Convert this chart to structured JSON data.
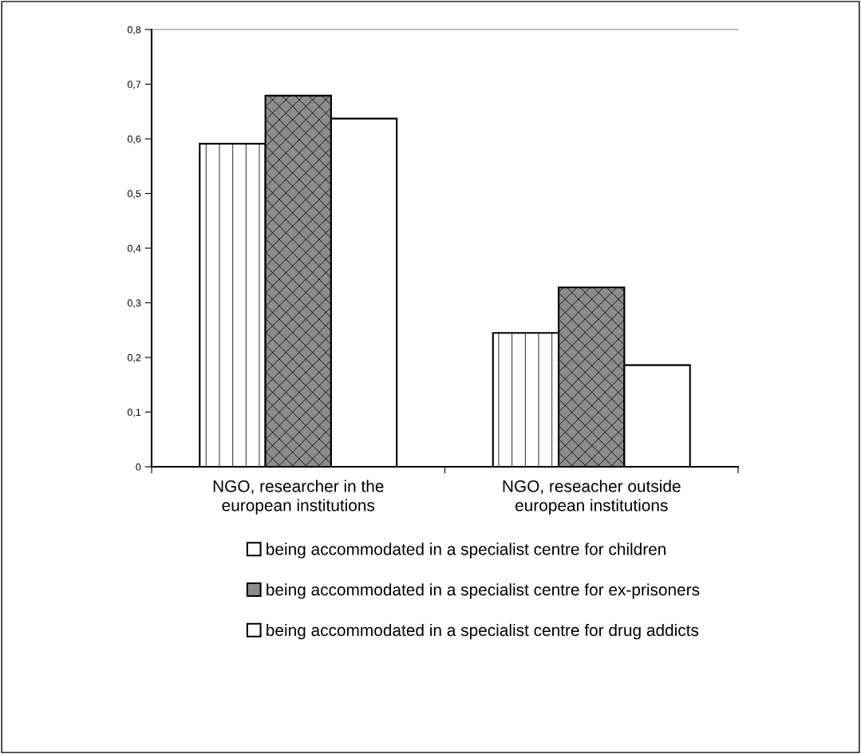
{
  "chart_data": {
    "type": "bar",
    "categories": [
      "NGO, researcher in the\neuropean institutions",
      "NGO, reseacher outside\neuropean institutions"
    ],
    "series": [
      {
        "name": "being accommodated in a specialist centre for children",
        "color": "#ffffff",
        "values": [
          0.591,
          0.245
        ]
      },
      {
        "name": "being accommodated in a specialist centre for ex-prisoners",
        "color": "#8c8c8c",
        "values": [
          0.679,
          0.328
        ]
      },
      {
        "name": "being accommodated in a specialist centre for drug addicts",
        "color": "#ffffff",
        "values": [
          0.637,
          0.186
        ]
      }
    ],
    "ylim": [
      0,
      0.8
    ],
    "yticks": [
      {
        "value": 0,
        "label": "0"
      },
      {
        "value": 0.1,
        "label": "0,1"
      },
      {
        "value": 0.2,
        "label": "0,2"
      },
      {
        "value": 0.3,
        "label": "0,3"
      },
      {
        "value": 0.4,
        "label": "0,4"
      },
      {
        "value": 0.5,
        "label": "0,5"
      },
      {
        "value": 0.6,
        "label": "0,6"
      },
      {
        "value": 0.7,
        "label": "0,7"
      },
      {
        "value": 0.8,
        "label": "0,8"
      }
    ],
    "grid": false,
    "legend": "bottom"
  }
}
